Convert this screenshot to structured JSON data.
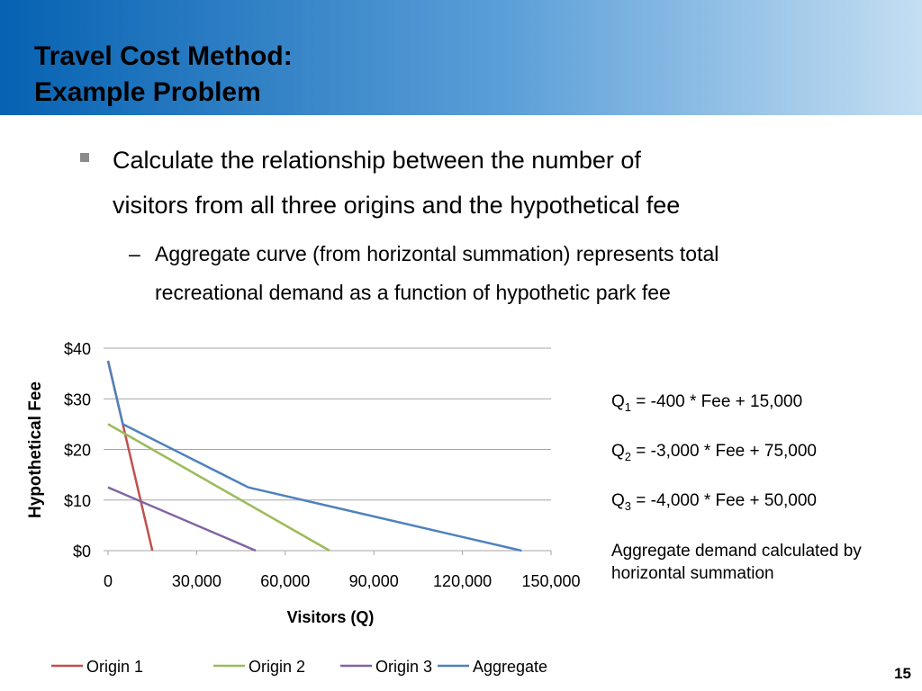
{
  "slide": {
    "title_lines": [
      "Travel Cost Method:",
      "Example Problem"
    ],
    "bullet": "Calculate the relationship between the number of visitors from all three origins and the hypothetical fee",
    "bullet_lines": [
      "Calculate the relationship between the number of",
      "visitors from all three origins and the hypothetical fee"
    ],
    "sub_bullet_lines": [
      "Aggregate curve (from horizontal summation) represents total",
      "recreational demand as a function of hypothetic park fee"
    ],
    "equations": [
      {
        "symbol": "Q",
        "subscript": "1",
        "rhs": " = -400 * Fee + 15,000"
      },
      {
        "symbol": "Q",
        "subscript": "2",
        "rhs": " = -3,000 * Fee + 75,000"
      },
      {
        "symbol": "Q",
        "subscript": "3",
        "rhs": " = -4,000 * Fee + 50,000"
      }
    ],
    "note_lines": [
      "Aggregate demand calculated by",
      "horizontal summation"
    ],
    "page_number": "15"
  },
  "chart_data": {
    "type": "line",
    "x_label": "Visitors (Q)",
    "y_label": "Hypothetical Fee",
    "xlim": [
      0,
      150000
    ],
    "ylim": [
      0,
      40
    ],
    "xticks": [
      0,
      {
        "value": 30000,
        "label": "30,000"
      },
      {
        "value": 60000,
        "label": "60,000"
      },
      {
        "value": 90000,
        "label": "90,000"
      },
      {
        "value": 120000,
        "label": "120,000"
      },
      {
        "value": 150000,
        "label": "150,000"
      }
    ],
    "yticks": [
      {
        "value": 0,
        "label": "$0"
      },
      {
        "value": 10,
        "label": "$10"
      },
      {
        "value": 20,
        "label": "$20"
      },
      {
        "value": 30,
        "label": "$30"
      },
      {
        "value": 40,
        "label": "$40"
      }
    ],
    "grid": true,
    "legend": "bottom",
    "series": [
      {
        "name": "Origin 1",
        "color": "#c0504d",
        "x": [
          0,
          15000
        ],
        "values": [
          37.5,
          0
        ]
      },
      {
        "name": "Origin 2",
        "color": "#9bbb59",
        "x": [
          0,
          75000
        ],
        "values": [
          25,
          0
        ]
      },
      {
        "name": "Origin 3",
        "color": "#8064a2",
        "x": [
          0,
          50000
        ],
        "values": [
          12.5,
          0
        ]
      },
      {
        "name": "Aggregate",
        "color": "#4f81bd",
        "x": [
          0,
          5000,
          47500,
          140000
        ],
        "values": [
          37.5,
          25,
          12.5,
          0
        ]
      }
    ]
  }
}
